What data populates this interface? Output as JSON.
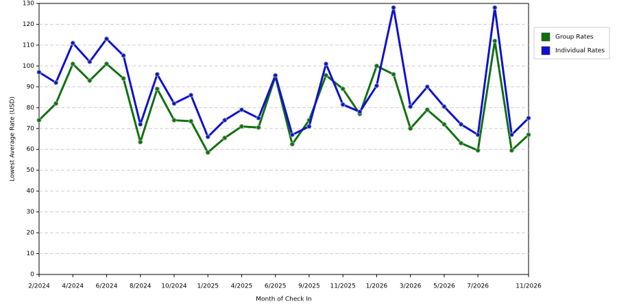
{
  "chart_data": {
    "type": "line",
    "x_label": "Month of Check In",
    "y_label": "Lowest Average Rate (USD)",
    "categories": [
      "2/2024",
      null,
      "4/2024",
      null,
      "6/2024",
      null,
      "8/2024",
      null,
      "10/2024",
      null,
      "1/2025",
      null,
      "4/2025",
      null,
      "6/2025",
      null,
      "9/2025",
      null,
      "11/2025",
      null,
      "1/2026",
      null,
      "3/2026",
      null,
      "5/2026",
      null,
      "7/2026",
      null,
      null,
      "11/2026"
    ],
    "series": [
      {
        "name": "Group Rates",
        "color": "#107010",
        "values": [
          74,
          82,
          101,
          93,
          101,
          94,
          63.5,
          89,
          74,
          73.5,
          58.5,
          65.5,
          71,
          70.5,
          95,
          62.5,
          74,
          95.5,
          89,
          77,
          100,
          96,
          70,
          79,
          72,
          63,
          59.5,
          112,
          59.5,
          67
        ]
      },
      {
        "name": "Individual Rates",
        "color": "#1010d0",
        "values": [
          97,
          92,
          111,
          102,
          113,
          105,
          72,
          96,
          82,
          86,
          66,
          74,
          79,
          75,
          95.5,
          67,
          71,
          101,
          81.5,
          78,
          90.5,
          128,
          80.5,
          90,
          80.5,
          72,
          67,
          128,
          67,
          75
        ]
      }
    ],
    "ylim": [
      0,
      130
    ],
    "yticks": [
      0,
      10,
      20,
      30,
      40,
      50,
      60,
      70,
      80,
      90,
      100,
      110,
      120,
      130
    ],
    "grid": true
  }
}
